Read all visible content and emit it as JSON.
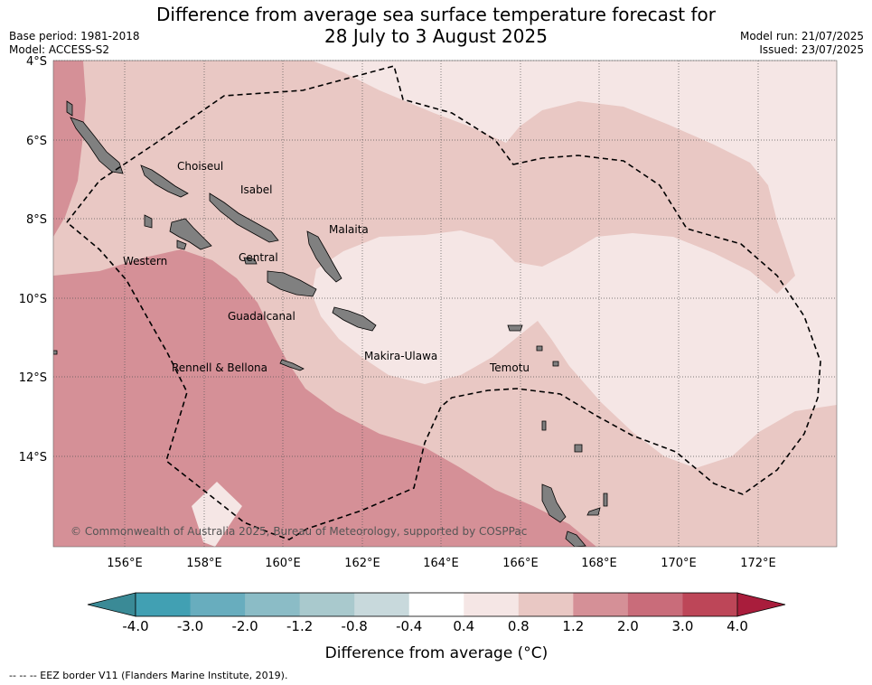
{
  "title_line1": "Difference from average sea surface temperature forecast for",
  "title_line2": "28 July to 3 August 2025",
  "base_period": "Base period: 1981-2018",
  "model": "Model: ACCESS-S2",
  "model_run": "Model run: 21/07/2025",
  "issued": "Issued: 23/07/2025",
  "lat_labels": [
    "4°S",
    "6°S",
    "8°S",
    "10°S",
    "12°S",
    "14°S"
  ],
  "lon_labels": [
    "156°E",
    "158°E",
    "160°E",
    "162°E",
    "164°E",
    "166°E",
    "168°E",
    "170°E",
    "172°E"
  ],
  "provinces": [
    "Choiseul",
    "Isabel",
    "Malaita",
    "Western",
    "Central",
    "Guadalcanal",
    "Makira-Ulawa",
    "Rennell & Bellona",
    "Temotu"
  ],
  "copyright": "© Commonwealth of Australia 2025, Bureau of Meteorology, supported by COSPPac",
  "colorbar": {
    "tick_labels": [
      "-4.0",
      "-3.0",
      "-2.0",
      "-1.2",
      "-0.8",
      "-0.4",
      "0.4",
      "0.8",
      "1.2",
      "2.0",
      "3.0",
      "4.0"
    ],
    "colors": [
      "#41a0b3",
      "#68adbe",
      "#8bbcc6",
      "#a9c9cd",
      "#c8d9dc",
      "#ffffff",
      "#f5e6e5",
      "#e9c8c4",
      "#d59097",
      "#c96c7a",
      "#bd4658"
    ],
    "under_color": "#3a8a96",
    "over_color": "#a91d3c",
    "label": "Difference from average (°C)"
  },
  "legend_note": "--  --  -- EEZ border V11 (Flanders Marine Institute, 2019).",
  "field_colors": {
    "anom_0_4_0_8": "#f5e6e5",
    "anom_0_8_1_2": "#e9c8c4",
    "anom_1_2_2_0": "#d59097",
    "land": "#808080"
  }
}
